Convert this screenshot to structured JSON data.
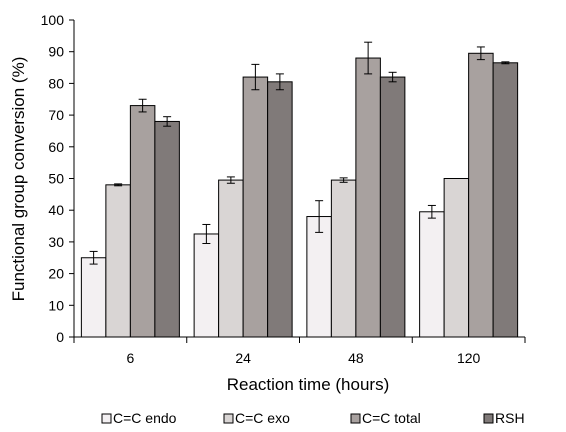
{
  "chart_data": {
    "type": "bar",
    "xlabel": "Reaction time (hours)",
    "ylabel": "Functional group conversion (%)",
    "ylim": [
      0,
      100
    ],
    "yticks": [
      0,
      10,
      20,
      30,
      40,
      50,
      60,
      70,
      80,
      90,
      100
    ],
    "categories": [
      "6",
      "24",
      "48",
      "120"
    ],
    "legend_position": "bottom",
    "grid": false,
    "series": [
      {
        "name": "C=C endo",
        "color": "#f3f0f2",
        "values": [
          25,
          32.5,
          38,
          39.5
        ],
        "errors": [
          2,
          3,
          5,
          2
        ]
      },
      {
        "name": "C=C exo",
        "color": "#d9d5d4",
        "values": [
          48,
          49.5,
          49.5,
          50
        ],
        "errors": [
          0.3,
          1,
          0.7,
          0
        ]
      },
      {
        "name": "C=C total",
        "color": "#a8a19f",
        "values": [
          73,
          82,
          88,
          89.5
        ],
        "errors": [
          2,
          4,
          5,
          2
        ]
      },
      {
        "name": "RSH",
        "color": "#807a79",
        "values": [
          68,
          80.5,
          82,
          86.5
        ],
        "errors": [
          1.5,
          2.5,
          1.5,
          0.3
        ]
      }
    ]
  }
}
